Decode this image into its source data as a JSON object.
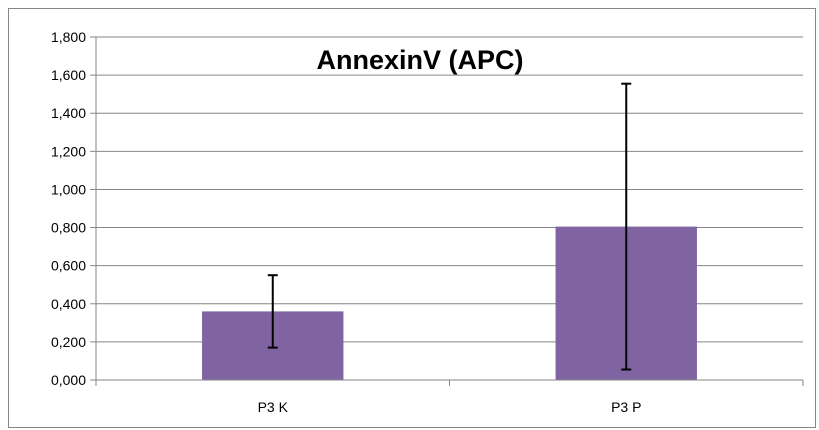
{
  "chart_data": {
    "type": "bar",
    "title": "AnnexinV (APC)",
    "xlabel": "",
    "ylabel": "",
    "categories": [
      "P3 K",
      "P3 P"
    ],
    "values": [
      0.36,
      0.805
    ],
    "error": [
      0.19,
      0.75
    ],
    "ylim": [
      0,
      1.8
    ],
    "yticks": [
      0,
      0.2,
      0.4,
      0.6,
      0.8,
      1.0,
      1.2,
      1.4,
      1.6,
      1.8
    ],
    "ytick_labels": [
      "0,000",
      "0,200",
      "0,400",
      "0,600",
      "0,800",
      "1,000",
      "1,200",
      "1,400",
      "1,600",
      "1,800"
    ],
    "grid": true,
    "legend": "none",
    "bar_color": "#8064a2",
    "gridline_color": "#868686"
  }
}
